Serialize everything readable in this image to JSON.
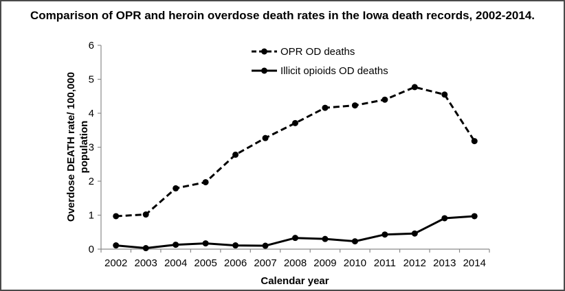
{
  "chart_data": {
    "type": "line",
    "title": "Comparison of OPR and heroin overdose death rates in the Iowa death records, 2002-2014.",
    "xlabel": "Calendar year",
    "ylabel_line1": "Overdose DEATH rate/ 100,000",
    "ylabel_line2": "population",
    "categories": [
      "2002",
      "2003",
      "2004",
      "2005",
      "2006",
      "2007",
      "2008",
      "2009",
      "2010",
      "2011",
      "2012",
      "2013",
      "2014"
    ],
    "ylim": [
      0,
      6
    ],
    "yticks": [
      "0",
      "1",
      "2",
      "3",
      "4",
      "5",
      "6"
    ],
    "grid": false,
    "legend_position": "top-center",
    "series": [
      {
        "name": "OPR OD deaths",
        "style": "dashed",
        "color": "#000000",
        "values": [
          0.97,
          1.02,
          1.79,
          1.97,
          2.78,
          3.27,
          3.71,
          4.16,
          4.23,
          4.4,
          4.77,
          4.55,
          3.18
        ]
      },
      {
        "name": "Illicit opioids OD deaths",
        "style": "solid",
        "color": "#000000",
        "values": [
          0.11,
          0.03,
          0.13,
          0.17,
          0.11,
          0.1,
          0.33,
          0.3,
          0.23,
          0.43,
          0.46,
          0.91,
          0.97
        ]
      }
    ]
  }
}
